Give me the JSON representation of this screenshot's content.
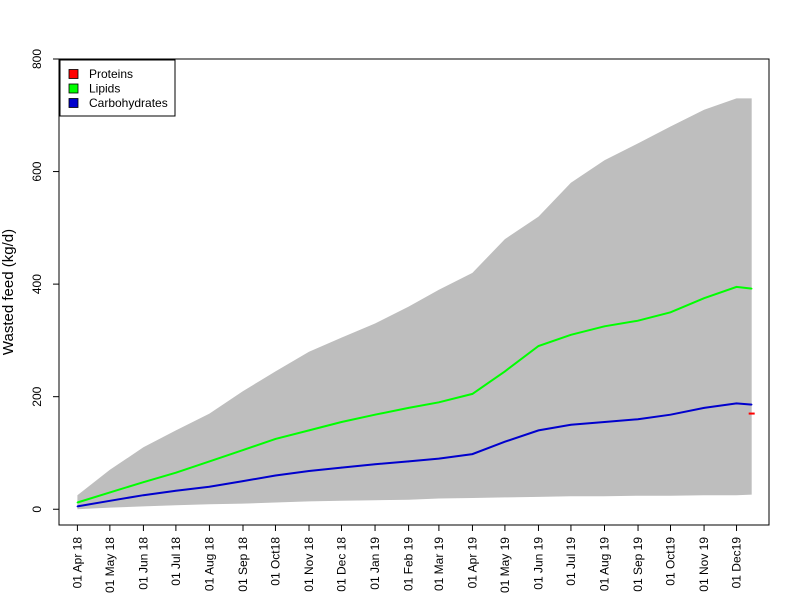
{
  "chart_data": {
    "type": "line",
    "title": "",
    "xlabel": "",
    "ylabel": "Wasted feed (kg/d)",
    "ylim": [
      -28,
      800
    ],
    "xlim": [
      "2018-03-15",
      "2019-12-31"
    ],
    "y_ticks": [
      0,
      200,
      400,
      600,
      800
    ],
    "x_ticks": [
      {
        "date": "2018-04-01",
        "label": "01 Apr 18"
      },
      {
        "date": "2018-05-01",
        "label": "01 May 18"
      },
      {
        "date": "2018-06-01",
        "label": "01 Jun 18"
      },
      {
        "date": "2018-07-01",
        "label": "01 Jul 18"
      },
      {
        "date": "2018-08-01",
        "label": "01 Aug 18"
      },
      {
        "date": "2018-09-01",
        "label": "01 Sep 18"
      },
      {
        "date": "2018-10-01",
        "label": "01 Oct18"
      },
      {
        "date": "2018-11-01",
        "label": "01 Nov 18"
      },
      {
        "date": "2018-12-01",
        "label": "01 Dec 18"
      },
      {
        "date": "2019-01-01",
        "label": "01 Jan 19"
      },
      {
        "date": "2019-02-01",
        "label": "01 Feb 19"
      },
      {
        "date": "2019-03-01",
        "label": "01 Mar 19"
      },
      {
        "date": "2019-04-01",
        "label": "01 Apr 19"
      },
      {
        "date": "2019-05-01",
        "label": "01 May 19"
      },
      {
        "date": "2019-06-01",
        "label": "01 Jun 19"
      },
      {
        "date": "2019-07-01",
        "label": "01 Jul 19"
      },
      {
        "date": "2019-08-01",
        "label": "01 Aug 19"
      },
      {
        "date": "2019-09-01",
        "label": "01 Sep 19"
      },
      {
        "date": "2019-10-01",
        "label": "01 Oct19"
      },
      {
        "date": "2019-11-01",
        "label": "01 Nov 19"
      },
      {
        "date": "2019-12-01",
        "label": "01 Dec19"
      }
    ],
    "legend": {
      "position": "top-left"
    },
    "grid": false,
    "range_band": {
      "color": "#bebebe",
      "x": [
        "2018-04-01",
        "2018-05-01",
        "2018-06-01",
        "2018-07-01",
        "2018-08-01",
        "2018-09-01",
        "2018-10-01",
        "2018-11-01",
        "2018-12-01",
        "2019-01-01",
        "2019-02-01",
        "2019-03-01",
        "2019-04-01",
        "2019-05-01",
        "2019-06-01",
        "2019-07-01",
        "2019-08-01",
        "2019-09-01",
        "2019-10-01",
        "2019-11-01",
        "2019-12-01",
        "2019-12-15"
      ],
      "low": [
        0,
        3,
        5,
        7,
        9,
        10,
        12,
        14,
        15,
        16,
        17,
        19,
        20,
        21,
        22,
        23,
        23,
        24,
        24,
        25,
        25,
        26
      ],
      "high": [
        25,
        70,
        110,
        140,
        170,
        210,
        245,
        280,
        305,
        330,
        360,
        390,
        420,
        480,
        520,
        580,
        620,
        650,
        680,
        710,
        730,
        730
      ]
    },
    "series": [
      {
        "name": "Proteins",
        "color": "#ff0000",
        "x": [
          "2019-12-15"
        ],
        "values": [
          170
        ]
      },
      {
        "name": "Lipids",
        "color": "#00ff00",
        "x": [
          "2018-04-01",
          "2018-05-01",
          "2018-06-01",
          "2018-07-01",
          "2018-08-01",
          "2018-09-01",
          "2018-10-01",
          "2018-11-01",
          "2018-12-01",
          "2019-01-01",
          "2019-02-01",
          "2019-03-01",
          "2019-04-01",
          "2019-05-01",
          "2019-06-01",
          "2019-07-01",
          "2019-08-01",
          "2019-09-01",
          "2019-10-01",
          "2019-11-01",
          "2019-12-01",
          "2019-12-15"
        ],
        "values": [
          12,
          30,
          48,
          65,
          85,
          105,
          125,
          140,
          155,
          168,
          180,
          190,
          205,
          245,
          290,
          310,
          325,
          335,
          350,
          375,
          395,
          392
        ]
      },
      {
        "name": "Carbohydrates",
        "color": "#0000cd",
        "x": [
          "2018-04-01",
          "2018-05-01",
          "2018-06-01",
          "2018-07-01",
          "2018-08-01",
          "2018-09-01",
          "2018-10-01",
          "2018-11-01",
          "2018-12-01",
          "2019-01-01",
          "2019-02-01",
          "2019-03-01",
          "2019-04-01",
          "2019-05-01",
          "2019-06-01",
          "2019-07-01",
          "2019-08-01",
          "2019-09-01",
          "2019-10-01",
          "2019-11-01",
          "2019-12-01",
          "2019-12-15"
        ],
        "values": [
          5,
          15,
          25,
          33,
          40,
          50,
          60,
          68,
          74,
          80,
          85,
          90,
          98,
          120,
          140,
          150,
          155,
          160,
          168,
          180,
          188,
          186
        ]
      }
    ]
  }
}
